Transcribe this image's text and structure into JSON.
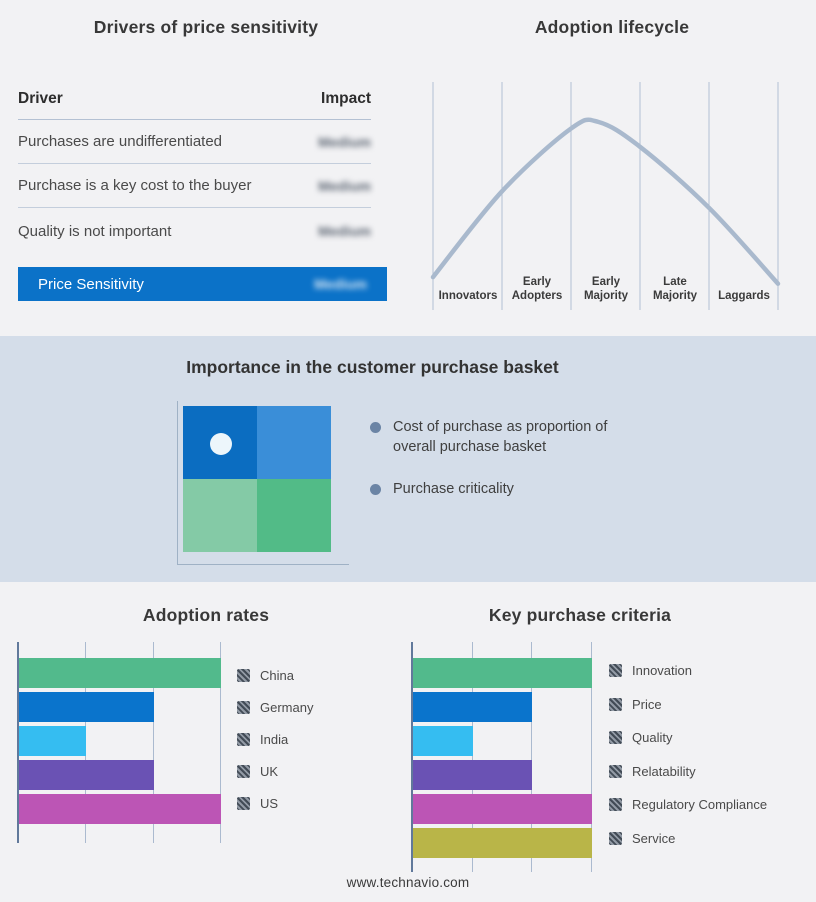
{
  "page": {
    "footer_link": "www.technavio.com",
    "background_color": "#f2f2f4",
    "band_background_color": "#d4dde9",
    "accent_blue": "#0b72c8"
  },
  "drivers_panel": {
    "title": "Drivers of price sensitivity",
    "columns": {
      "driver": "Driver",
      "impact": "Impact"
    },
    "rows": [
      {
        "driver": "Purchases are undifferentiated",
        "impact": "Medium",
        "impact_redacted": true
      },
      {
        "driver": "Purchase is a key cost to the buyer",
        "impact": "Medium",
        "impact_redacted": true
      },
      {
        "driver": "Quality is not important",
        "impact": "Medium",
        "impact_redacted": true
      }
    ],
    "summary_row": {
      "driver": "Price Sensitivity",
      "impact": "Medium",
      "impact_redacted": true,
      "row_color": "#0b72c8"
    }
  },
  "lifecycle_panel": {
    "title": "Adoption lifecycle"
  },
  "basket_panel": {
    "title": "Importance in the customer purchase basket",
    "bullets": [
      "Cost of purchase as proportion of overall purchase basket",
      "Purchase criticality"
    ],
    "matrix_colors": {
      "top_left": "#0b6dc1",
      "top_right": "#3a8ed8",
      "bottom_left": "#84caa6",
      "bottom_right": "#52bb87"
    },
    "marker": "white dot in top-left quadrant"
  },
  "adoption_panel": {
    "title": "Adoption rates"
  },
  "criteria_panel": {
    "title": "Key purchase criteria"
  },
  "chart_data": [
    {
      "id": "adoption_lifecycle",
      "type": "line",
      "title": "Adoption lifecycle",
      "categories": [
        "Innovators",
        "Early Adopters",
        "Early Majority",
        "Late Majority",
        "Laggards"
      ],
      "curve": "technology adoption bell curve, peak over Early Majority",
      "x_range": [
        0,
        5
      ],
      "points_norm": [
        [
          0,
          0.06
        ],
        [
          1,
          0.58
        ],
        [
          2,
          0.96
        ],
        [
          2.4,
          1.0
        ],
        [
          3,
          0.85
        ],
        [
          4,
          0.48
        ],
        [
          5,
          0.02
        ]
      ],
      "line_color": "#a9b9cd",
      "grid": "6 vertical category separators, no numeric axes"
    },
    {
      "id": "adoption_rates",
      "type": "bar",
      "orientation": "horizontal",
      "title": "Adoption rates",
      "categories": [
        "China",
        "Germany",
        "India",
        "UK",
        "US"
      ],
      "values": [
        3,
        2,
        1,
        2,
        3
      ],
      "xlim": [
        0,
        3
      ],
      "grid": true,
      "bar_colors": [
        "#52ba8c",
        "#0a74cc",
        "#35bdf1",
        "#6a52b4",
        "#bc55b5"
      ],
      "legend_position": "right",
      "legend_swatch_style": "gray hatched square"
    },
    {
      "id": "key_purchase_criteria",
      "type": "bar",
      "orientation": "horizontal",
      "title": "Key purchase criteria",
      "categories": [
        "Innovation",
        "Price",
        "Quality",
        "Relatability",
        "Regulatory Compliance",
        "Service"
      ],
      "values": [
        3,
        2,
        1,
        2,
        3,
        3
      ],
      "xlim": [
        0,
        3
      ],
      "grid": true,
      "bar_colors": [
        "#52ba8c",
        "#0a74cc",
        "#35bdf1",
        "#6a52b4",
        "#bc55b5",
        "#b9b548"
      ],
      "legend_position": "right",
      "legend_swatch_style": "gray hatched square"
    }
  ]
}
